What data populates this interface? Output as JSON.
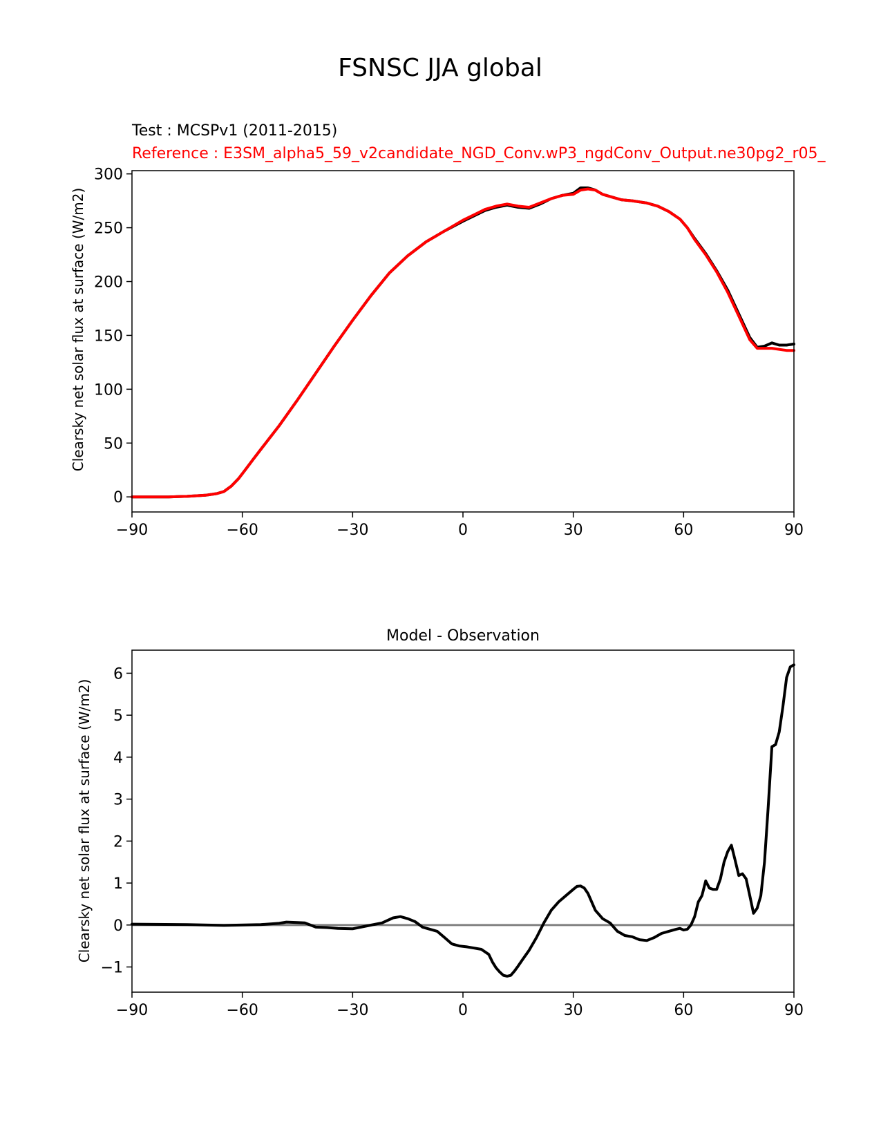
{
  "figure": {
    "title": "FSNSC JJA global"
  },
  "colors": {
    "test": "#000000",
    "reference": "#ff0000",
    "zero_line": "#808080"
  },
  "chart_data": [
    {
      "type": "line",
      "name": "top-panel",
      "test_label": "Test : MCSPv1 (2011-2015)",
      "reference_label": "Reference : E3SM_alpha5_59_v2candidate_NGD_Conv.wP3_ngdConv_Output.ne30pg2_r05_",
      "xlabel": "",
      "ylabel": "Clearsky net solar flux at surface (W/m2)",
      "xlim": [
        -90,
        90
      ],
      "ylim": [
        -14,
        303
      ],
      "xticks": [
        -90,
        -60,
        -30,
        0,
        30,
        60,
        90
      ],
      "xtick_labels": [
        "−90",
        "−60",
        "−30",
        "0",
        "30",
        "60",
        "90"
      ],
      "yticks": [
        0,
        50,
        100,
        150,
        200,
        250,
        300
      ],
      "ytick_labels": [
        "0",
        "50",
        "100",
        "150",
        "200",
        "250",
        "300"
      ],
      "series": [
        {
          "name": "Test",
          "color": "#000000",
          "x": [
            -90,
            -80,
            -75,
            -70,
            -67,
            -65,
            -63,
            -61,
            -59,
            -57,
            -55,
            -50,
            -45,
            -40,
            -35,
            -30,
            -25,
            -20,
            -15,
            -10,
            -5,
            0,
            3,
            6,
            9,
            12,
            15,
            18,
            21,
            24,
            27,
            30,
            32,
            34,
            36,
            38,
            40,
            43,
            46,
            50,
            53,
            56,
            59,
            61,
            63,
            66,
            69,
            72,
            75,
            78,
            80,
            82,
            84,
            86,
            88,
            90
          ],
          "y": [
            0,
            0,
            0.5,
            1.5,
            3,
            5,
            10,
            17,
            26,
            35,
            44,
            66,
            90,
            115,
            140,
            164,
            187,
            208,
            224,
            237,
            247,
            256,
            261,
            266,
            269,
            271,
            269,
            268,
            272,
            277,
            280,
            282,
            287,
            287,
            285,
            281,
            279,
            276,
            275,
            273,
            270,
            265,
            258,
            250,
            240,
            226,
            210,
            192,
            170,
            148,
            139,
            140,
            143,
            141,
            141,
            142
          ]
        },
        {
          "name": "Reference",
          "color": "#ff0000",
          "x": [
            -90,
            -80,
            -75,
            -70,
            -67,
            -65,
            -63,
            -61,
            -59,
            -57,
            -55,
            -50,
            -45,
            -40,
            -35,
            -30,
            -25,
            -20,
            -15,
            -10,
            -5,
            0,
            3,
            6,
            9,
            12,
            15,
            18,
            21,
            24,
            27,
            30,
            32,
            34,
            36,
            38,
            40,
            43,
            46,
            50,
            53,
            56,
            59,
            61,
            63,
            66,
            69,
            72,
            75,
            78,
            80,
            82,
            84,
            86,
            88,
            90
          ],
          "y": [
            0,
            0,
            0.5,
            1.5,
            3,
            5,
            10,
            17,
            26,
            35,
            44,
            66,
            90,
            115,
            140,
            164,
            187,
            208,
            224,
            237,
            247,
            257,
            262,
            267,
            270,
            272,
            270,
            269,
            273,
            277,
            280,
            281,
            285,
            286,
            285,
            281,
            279,
            276,
            275,
            273,
            270,
            265,
            258,
            250,
            239,
            225,
            209,
            190,
            168,
            146,
            138,
            138,
            138,
            137,
            136,
            136
          ]
        }
      ]
    },
    {
      "type": "line",
      "name": "bottom-panel",
      "title": "Model - Observation",
      "xlabel": "",
      "ylabel": "Clearsky net solar flux at surface (W/m2)",
      "xlim": [
        -90,
        90
      ],
      "ylim": [
        -1.6,
        6.55
      ],
      "xticks": [
        -90,
        -60,
        -30,
        0,
        30,
        60,
        90
      ],
      "xtick_labels": [
        "−90",
        "−60",
        "−30",
        "0",
        "30",
        "60",
        "90"
      ],
      "yticks": [
        -1,
        0,
        1,
        2,
        3,
        4,
        5,
        6
      ],
      "ytick_labels": [
        "−1",
        "0",
        "1",
        "2",
        "3",
        "4",
        "5",
        "6"
      ],
      "zero_line": 0,
      "series": [
        {
          "name": "Model - Observation",
          "color": "#000000",
          "x": [
            -90,
            -75,
            -65,
            -55,
            -50,
            -48,
            -45,
            -43,
            -40,
            -37,
            -34,
            -30,
            -26,
            -22,
            -19,
            -17,
            -15,
            -13,
            -11,
            -9,
            -7,
            -5,
            -3,
            -1,
            1,
            3,
            5,
            7,
            8,
            9,
            10,
            11,
            12,
            13,
            14,
            15,
            16,
            18,
            20,
            22,
            24,
            26,
            28,
            30,
            31,
            32,
            33,
            34,
            35,
            36,
            38,
            40,
            42,
            44,
            46,
            48,
            50,
            52,
            54,
            56,
            58,
            59,
            60,
            61,
            62,
            63,
            64,
            65,
            66,
            67,
            68,
            69,
            70,
            71,
            72,
            73,
            74,
            75,
            76,
            77,
            78,
            79,
            80,
            81,
            82,
            83,
            84,
            85,
            86,
            87,
            88,
            89,
            90
          ],
          "y": [
            0.02,
            0.01,
            -0.01,
            0.01,
            0.04,
            0.07,
            0.06,
            0.05,
            -0.05,
            -0.06,
            -0.08,
            -0.09,
            -0.02,
            0.05,
            0.17,
            0.2,
            0.15,
            0.08,
            -0.05,
            -0.1,
            -0.15,
            -0.3,
            -0.45,
            -0.5,
            -0.52,
            -0.55,
            -0.58,
            -0.7,
            -0.88,
            -1.02,
            -1.12,
            -1.2,
            -1.22,
            -1.2,
            -1.1,
            -0.98,
            -0.85,
            -0.6,
            -0.3,
            0.05,
            0.35,
            0.55,
            0.7,
            0.85,
            0.92,
            0.93,
            0.88,
            0.75,
            0.55,
            0.35,
            0.15,
            0.05,
            -0.15,
            -0.25,
            -0.28,
            -0.35,
            -0.37,
            -0.3,
            -0.2,
            -0.15,
            -0.1,
            -0.08,
            -0.12,
            -0.1,
            0.0,
            0.2,
            0.55,
            0.7,
            1.05,
            0.88,
            0.85,
            0.85,
            1.1,
            1.5,
            1.75,
            1.9,
            1.55,
            1.18,
            1.22,
            1.1,
            0.7,
            0.28,
            0.4,
            0.7,
            1.5,
            2.8,
            4.25,
            4.3,
            4.6,
            5.2,
            5.9,
            6.15,
            6.2
          ]
        }
      ]
    }
  ]
}
